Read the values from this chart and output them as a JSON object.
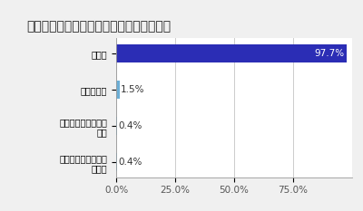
{
  "title": "現在の就職活動の状況を教えてください。",
  "categories": [
    "活動中",
    "活動休止中",
    "内定承諾による活動\n終了",
    "その他理由による活\n動終了"
  ],
  "values": [
    97.7,
    1.5,
    0.4,
    0.4
  ],
  "bar_color_main": "#2b2db5",
  "bar_color_small": "#6baed6",
  "xlim": [
    0,
    100
  ],
  "xtick_labels": [
    "0.0%",
    "25.0%",
    "50.0%",
    "75.0%"
  ],
  "xtick_values": [
    0,
    25,
    50,
    75
  ],
  "value_labels": [
    "97.7%",
    "1.5%",
    "0.4%",
    "0.4%"
  ],
  "title_fontsize": 10,
  "tick_fontsize": 7.5,
  "bar_label_fontsize": 7.5,
  "ytick_fontsize": 7,
  "background_color": "#f0f0f0"
}
